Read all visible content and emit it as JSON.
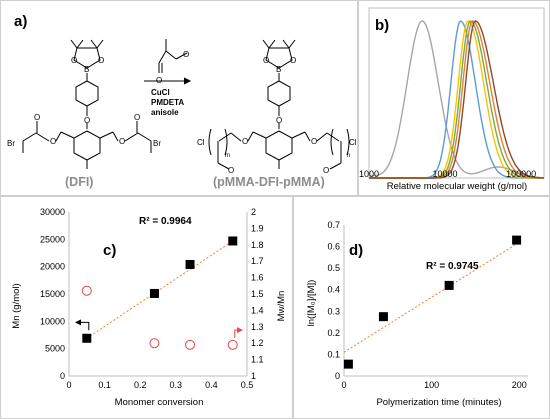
{
  "panels": {
    "a": {
      "label": "a)",
      "left_name": "(DFI)",
      "right_name": "(pMMA-DFI-pMMA)",
      "reagents": [
        "CuCl",
        "PMDETA",
        "anisole"
      ],
      "atoms": {
        "B": "B",
        "O": "O",
        "Br": "Br",
        "Cl": "Cl",
        "m": "m",
        "n": "n"
      }
    },
    "b": {
      "label": "b)"
    },
    "c": {
      "label": "c)"
    },
    "d": {
      "label": "d)"
    }
  },
  "chart_data": [
    {
      "id": "b",
      "type": "line",
      "xlabel": "Relative molecular weight (g/mol)",
      "x_scale": "log",
      "xlim": [
        1000,
        200000
      ],
      "x_ticks": [
        "1000",
        "10000",
        "100000"
      ],
      "series": [
        {
          "color": "#a6a6a6",
          "peak_mw": 5000
        },
        {
          "color": "#5b9bd5",
          "peak_mw": 16000
        },
        {
          "color": "#ffc000",
          "peak_mw": 20000
        },
        {
          "color": "#70ad47",
          "peak_mw": 21500
        },
        {
          "color": "#ed7d31",
          "peak_mw": 23000
        },
        {
          "color": "#8b4a2b",
          "peak_mw": 25000
        }
      ]
    },
    {
      "id": "c",
      "type": "scatter",
      "xlabel": "Monomer conversion",
      "ylabel_left": "Mn (g/mol)",
      "ylabel_right": "Mw/Mn",
      "xlim": [
        0,
        0.5
      ],
      "ylim_left": [
        0,
        30000
      ],
      "ylim_right": [
        1,
        2
      ],
      "x_ticks": [
        "0",
        "0.1",
        "0.2",
        "0.3",
        "0.4",
        "0.5"
      ],
      "y_left_ticks": [
        "0",
        "5000",
        "10000",
        "15000",
        "20000",
        "25000",
        "30000"
      ],
      "y_right_ticks": [
        "1",
        "1.1",
        "1.2",
        "1.3",
        "1.4",
        "1.5",
        "1.6",
        "1.7",
        "1.8",
        "1.9",
        "2"
      ],
      "r2": "R² = 0.9964",
      "mn_series": {
        "x": [
          0.05,
          0.24,
          0.34,
          0.46
        ],
        "y": [
          6900,
          15100,
          20400,
          24700
        ]
      },
      "pdi_series": {
        "x": [
          0.05,
          0.24,
          0.34,
          0.46
        ],
        "y": [
          1.52,
          1.2,
          1.19,
          1.19
        ]
      },
      "trend": {
        "x": [
          0.05,
          0.46
        ],
        "y": [
          6900,
          24700
        ]
      }
    },
    {
      "id": "d",
      "type": "scatter",
      "xlabel": "Polymerization time (minutes)",
      "ylabel": "ln([M₀]/[M])",
      "xlim": [
        0,
        210
      ],
      "ylim": [
        0,
        0.7
      ],
      "x_ticks": [
        "0",
        "100",
        "200"
      ],
      "y_ticks": [
        "0",
        "0.1",
        "0.2",
        "0.3",
        "0.4",
        "0.5",
        "0.6",
        "0.7"
      ],
      "r2": "R² = 0.9745",
      "points": {
        "x": [
          5,
          45,
          120,
          197
        ],
        "y": [
          0.055,
          0.275,
          0.42,
          0.63
        ]
      },
      "trend": {
        "x": [
          0,
          200
        ],
        "y": [
          0.11,
          0.62
        ]
      }
    }
  ]
}
